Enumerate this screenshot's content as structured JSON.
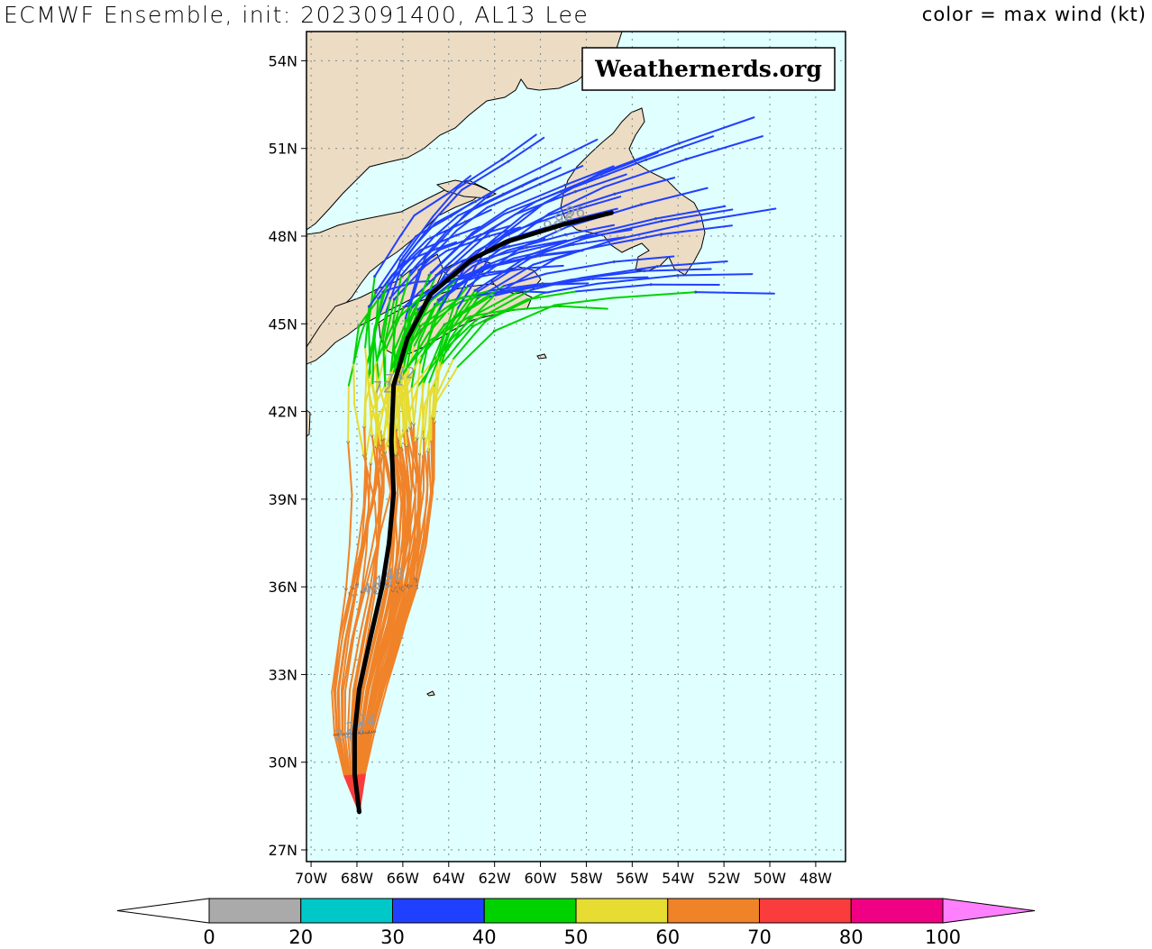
{
  "header": {
    "title": "ECMWF Ensemble, init: 2023091400, AL13 Lee",
    "legend_title": "color = max wind (kt)"
  },
  "watermark": "Weathernerds.org",
  "map": {
    "lon_range": [
      -70.2,
      -46.7
    ],
    "lat_range": [
      26.6,
      55.0
    ],
    "lat_ticks": [
      "54N",
      "51N",
      "48N",
      "45N",
      "42N",
      "39N",
      "36N",
      "33N",
      "30N",
      "27N"
    ],
    "lon_ticks": [
      "70W",
      "68W",
      "66W",
      "64W",
      "62W",
      "60W",
      "58W",
      "56W",
      "54W",
      "52W",
      "50W",
      "48W"
    ],
    "ocean_color": "#e0ffff",
    "land_color": "#ecdcc4",
    "grid": "dotted"
  },
  "colorbar": {
    "ticks": [
      "0",
      "20",
      "30",
      "40",
      "50",
      "60",
      "70",
      "80",
      "100"
    ],
    "colors": [
      "#aaaaaa",
      "#00c8c8",
      "#2040ff",
      "#00d200",
      "#e6dc32",
      "#f08228",
      "#fa3c3c",
      "#f00082",
      "#ff80ff"
    ]
  },
  "chart_data": {
    "type": "map-tracks",
    "title": "ECMWF Ensemble, init: 2023091400, AL13 Lee",
    "color_variable": "max wind (kt)",
    "mean_track": [
      {
        "lon": -67.9,
        "lat": 28.3
      },
      {
        "lon": -68.1,
        "lat": 29.6
      },
      {
        "lon": -68.1,
        "lat": 31.0
      },
      {
        "lon": -67.9,
        "lat": 32.5
      },
      {
        "lon": -67.4,
        "lat": 34.3
      },
      {
        "lon": -66.9,
        "lat": 36.0
      },
      {
        "lon": -66.6,
        "lat": 37.5
      },
      {
        "lon": -66.4,
        "lat": 39.2
      },
      {
        "lon": -66.5,
        "lat": 41.0
      },
      {
        "lon": -66.4,
        "lat": 42.9
      },
      {
        "lon": -65.8,
        "lat": 44.5
      },
      {
        "lon": -64.8,
        "lat": 46.0
      },
      {
        "lon": -63.0,
        "lat": 47.2
      },
      {
        "lon": -61.5,
        "lat": 47.8
      },
      {
        "lon": -59.0,
        "lat": 48.4
      },
      {
        "lon": -56.9,
        "lat": 48.8
      }
    ],
    "hour_labels": [
      "24",
      "48",
      "72",
      "96"
    ],
    "ensemble_track_count": 50
  }
}
